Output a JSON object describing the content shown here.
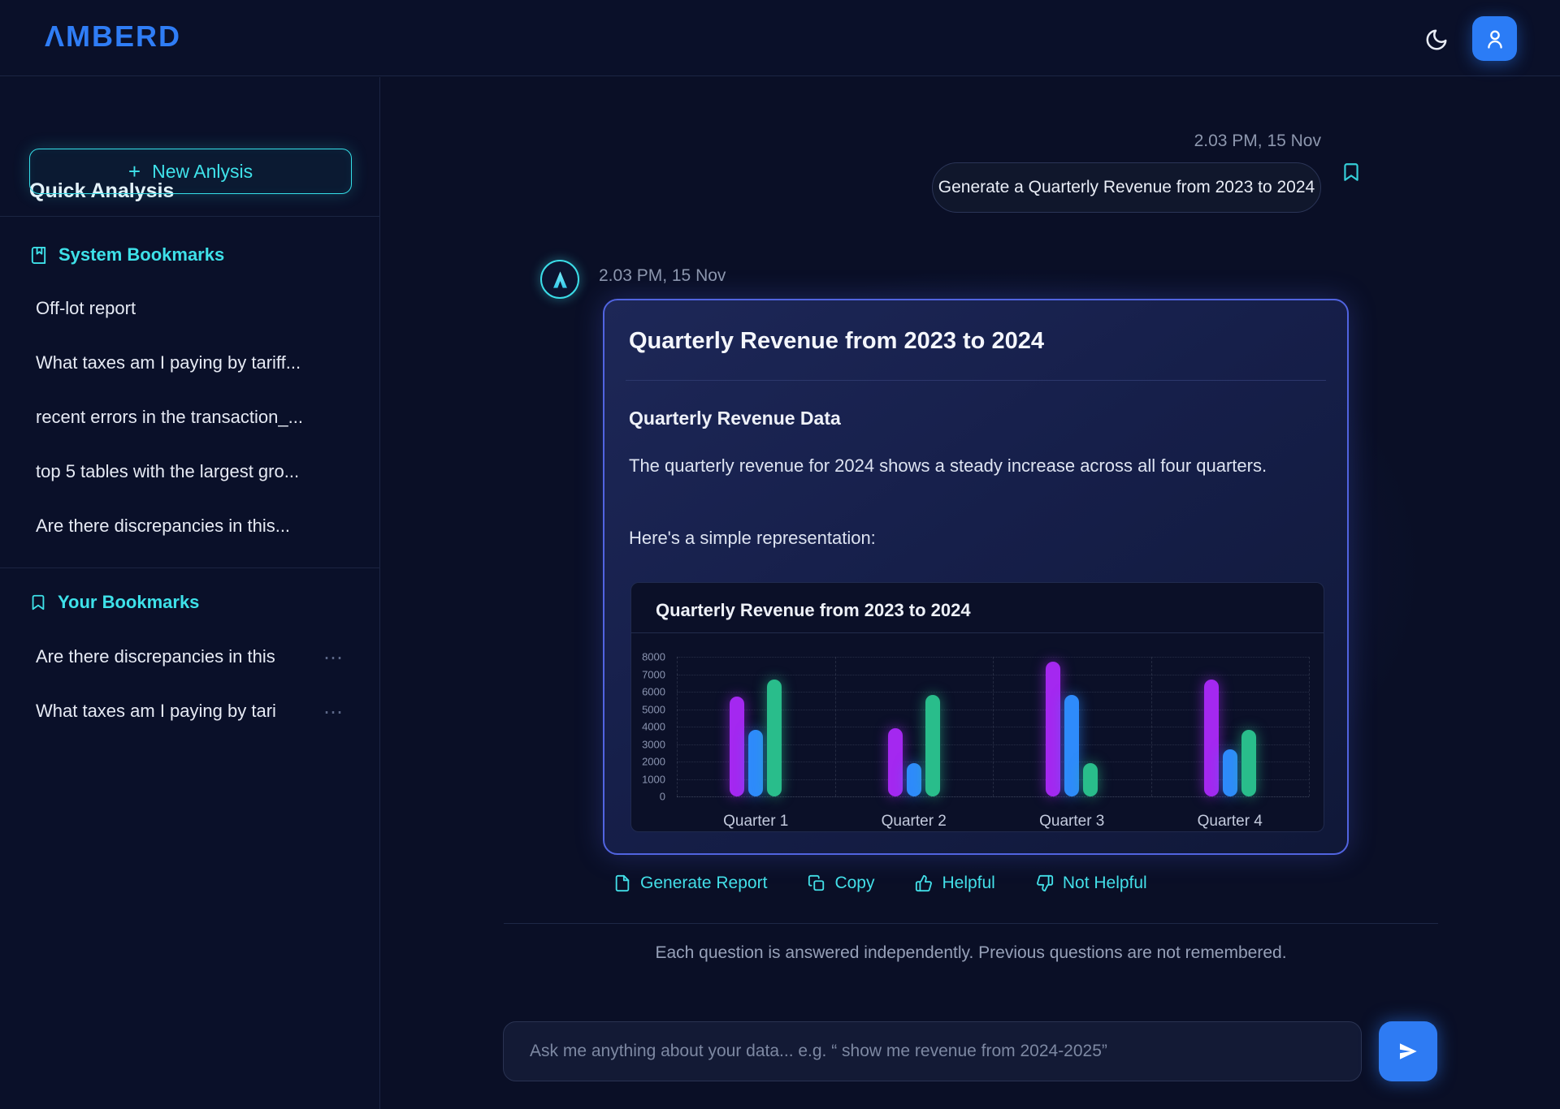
{
  "topbar": {
    "logo": "ΛMBERD"
  },
  "sidebar": {
    "title": "Quick Analysis",
    "new_analysis": {
      "plus": "+",
      "label": "New Anlysis"
    },
    "system_bookmarks": {
      "label": "System Bookmarks",
      "items": [
        "Off-lot report",
        "What taxes am I paying by tariff...",
        "recent errors in the transaction_...",
        "top 5 tables with the largest gro...",
        "Are there discrepancies in this..."
      ]
    },
    "your_bookmarks": {
      "label": "Your Bookmarks",
      "items": [
        {
          "label": "Are there discrepancies in this",
          "menu": "⋯"
        },
        {
          "label": "What taxes am I paying by tari",
          "menu": "⋯"
        }
      ]
    }
  },
  "chat": {
    "user_message": {
      "timestamp": "2.03 PM, 15 Nov",
      "text": "Generate a Quarterly Revenue from 2023 to 2024"
    },
    "assistant": {
      "timestamp": "2.03 PM, 15 Nov",
      "card": {
        "title": "Quarterly Revenue from 2023 to 2024",
        "section_heading": "Quarterly Revenue Data",
        "paragraph": "The quarterly revenue for 2024 shows a steady increase across all four quarters.",
        "intro": "Here's a simple representation:"
      }
    },
    "actions": [
      {
        "icon": "file-icon",
        "label": "Generate Report"
      },
      {
        "icon": "copy-icon",
        "label": "Copy"
      },
      {
        "icon": "thumbs-up-icon",
        "label": "Helpful"
      },
      {
        "icon": "thumbs-down-icon",
        "label": "Not Helpful"
      }
    ],
    "footnote": "Each question is answered independently. Previous questions are not remembered.",
    "input": {
      "placeholder": "Ask me anything about your data... e.g. “ show me revenue from 2024-2025”"
    }
  },
  "accent_colors": {
    "brand_blue": "#2f7df6",
    "cyan": "#3fe2ea",
    "card_border": "#5164e0",
    "send_blue": "#2e7bf3"
  },
  "chart_data": {
    "type": "bar",
    "title": "Quarterly Revenue from 2023 to 2024",
    "categories": [
      "Quarter 1",
      "Quarter 2",
      "Quarter 3",
      "Quarter 4"
    ],
    "series": [
      {
        "name": "purple",
        "color": "#a428f0",
        "values": [
          5700,
          3900,
          7700,
          6700
        ]
      },
      {
        "name": "blue",
        "color": "#2e8bfb",
        "values": [
          3800,
          1900,
          5800,
          2700
        ]
      },
      {
        "name": "green",
        "color": "#29bd8b",
        "values": [
          6700,
          5800,
          1900,
          3800
        ]
      }
    ],
    "xlabel": "",
    "ylabel": "",
    "ylim": [
      0,
      8000
    ],
    "ytick_step": 1000,
    "grid": true,
    "legend": false
  }
}
